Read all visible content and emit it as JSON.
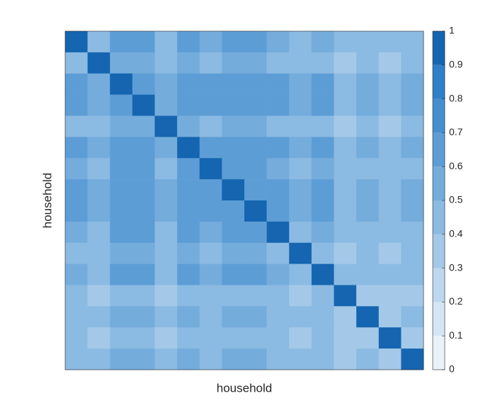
{
  "chart_data": {
    "type": "heatmap",
    "xlabel": "household",
    "ylabel": "household",
    "z": [
      [
        1,
        0.4,
        0.6,
        0.6,
        0.4,
        0.6,
        0.5,
        0.6,
        0.6,
        0.5,
        0.4,
        0.5,
        0.4,
        0.4,
        0.4,
        0.4
      ],
      [
        0.4,
        1,
        0.5,
        0.5,
        0.4,
        0.5,
        0.4,
        0.5,
        0.5,
        0.4,
        0.4,
        0.4,
        0.3,
        0.4,
        0.3,
        0.4
      ],
      [
        0.6,
        0.5,
        1,
        0.6,
        0.5,
        0.6,
        0.6,
        0.6,
        0.6,
        0.6,
        0.5,
        0.6,
        0.4,
        0.5,
        0.4,
        0.5
      ],
      [
        0.6,
        0.5,
        0.6,
        1,
        0.5,
        0.6,
        0.6,
        0.6,
        0.6,
        0.6,
        0.5,
        0.6,
        0.4,
        0.5,
        0.4,
        0.5
      ],
      [
        0.4,
        0.4,
        0.5,
        0.5,
        1,
        0.5,
        0.4,
        0.5,
        0.5,
        0.4,
        0.4,
        0.4,
        0.3,
        0.4,
        0.3,
        0.4
      ],
      [
        0.6,
        0.5,
        0.6,
        0.6,
        0.5,
        1,
        0.6,
        0.6,
        0.6,
        0.6,
        0.5,
        0.6,
        0.4,
        0.5,
        0.4,
        0.5
      ],
      [
        0.5,
        0.4,
        0.6,
        0.6,
        0.4,
        0.6,
        1,
        0.6,
        0.6,
        0.5,
        0.4,
        0.5,
        0.4,
        0.4,
        0.4,
        0.4
      ],
      [
        0.6,
        0.5,
        0.6,
        0.6,
        0.5,
        0.6,
        0.6,
        1,
        0.6,
        0.6,
        0.5,
        0.6,
        0.4,
        0.5,
        0.4,
        0.5
      ],
      [
        0.6,
        0.5,
        0.6,
        0.6,
        0.5,
        0.6,
        0.6,
        0.6,
        1,
        0.6,
        0.5,
        0.6,
        0.4,
        0.5,
        0.4,
        0.5
      ],
      [
        0.5,
        0.4,
        0.6,
        0.6,
        0.4,
        0.6,
        0.5,
        0.6,
        0.6,
        1,
        0.4,
        0.5,
        0.4,
        0.4,
        0.4,
        0.4
      ],
      [
        0.4,
        0.4,
        0.5,
        0.5,
        0.4,
        0.5,
        0.4,
        0.5,
        0.5,
        0.4,
        1,
        0.4,
        0.3,
        0.4,
        0.3,
        0.4
      ],
      [
        0.5,
        0.4,
        0.6,
        0.6,
        0.4,
        0.6,
        0.5,
        0.6,
        0.6,
        0.5,
        0.4,
        1,
        0.4,
        0.4,
        0.4,
        0.4
      ],
      [
        0.4,
        0.3,
        0.4,
        0.4,
        0.3,
        0.4,
        0.4,
        0.4,
        0.4,
        0.4,
        0.3,
        0.4,
        1,
        0.3,
        0.3,
        0.3
      ],
      [
        0.4,
        0.4,
        0.5,
        0.5,
        0.4,
        0.5,
        0.4,
        0.5,
        0.5,
        0.4,
        0.4,
        0.4,
        0.3,
        1,
        0.3,
        0.4
      ],
      [
        0.4,
        0.3,
        0.4,
        0.4,
        0.3,
        0.4,
        0.4,
        0.4,
        0.4,
        0.4,
        0.3,
        0.4,
        0.3,
        0.3,
        1,
        0.3
      ],
      [
        0.4,
        0.4,
        0.5,
        0.5,
        0.4,
        0.5,
        0.4,
        0.5,
        0.5,
        0.4,
        0.4,
        0.4,
        0.3,
        0.4,
        0.3,
        1
      ]
    ],
    "clim": [
      0,
      1
    ],
    "cticks": [
      0,
      0.1,
      0.2,
      0.3,
      0.4,
      0.5,
      0.6,
      0.7,
      0.8,
      0.9,
      1
    ],
    "colormap": [
      "#eaf2f9",
      "#d4e5f4",
      "#bcd7ee",
      "#a4c9e8",
      "#8bbae2",
      "#74acdc",
      "#5d9dd5",
      "#468fcf",
      "#2f80c8",
      "#1565b0"
    ]
  }
}
